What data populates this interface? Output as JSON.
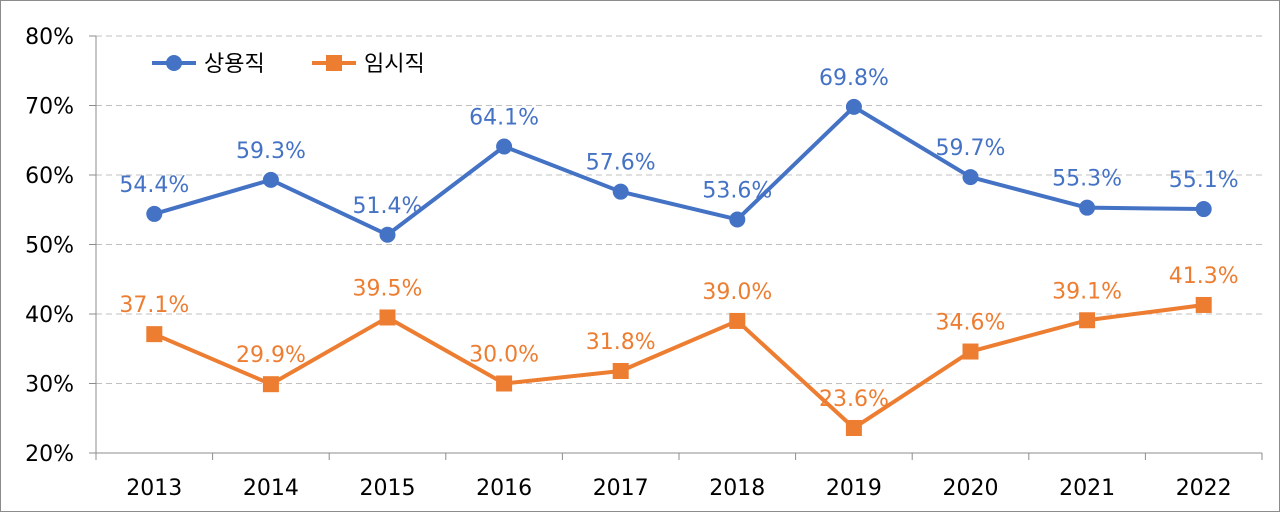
{
  "chart_data": {
    "type": "line",
    "title": "",
    "xlabel": "",
    "ylabel": "",
    "x": [
      "2013",
      "2014",
      "2015",
      "2016",
      "2017",
      "2018",
      "2019",
      "2020",
      "2021",
      "2022"
    ],
    "ylim": [
      20,
      80
    ],
    "yticks": [
      20,
      30,
      40,
      50,
      60,
      70,
      80
    ],
    "ytick_labels": [
      "20%",
      "30%",
      "40%",
      "50%",
      "60%",
      "70%",
      "80%"
    ],
    "grid": "horizontal dashed",
    "legend_position": "top-left",
    "series": [
      {
        "name": "상용직",
        "color": "#4472C4",
        "marker": "circle",
        "values": [
          54.4,
          59.3,
          51.4,
          64.1,
          57.6,
          53.6,
          69.8,
          59.7,
          55.3,
          55.1
        ],
        "labels": [
          "54.4%",
          "59.3%",
          "51.4%",
          "64.1%",
          "57.6%",
          "53.6%",
          "69.8%",
          "59.7%",
          "55.3%",
          "55.1%"
        ]
      },
      {
        "name": "임시직",
        "color": "#ED7D31",
        "marker": "square",
        "values": [
          37.1,
          29.9,
          39.5,
          30.0,
          31.8,
          39.0,
          23.6,
          34.6,
          39.1,
          41.3
        ],
        "labels": [
          "37.1%",
          "29.9%",
          "39.5%",
          "30.0%",
          "31.8%",
          "39.0%",
          "23.6%",
          "34.6%",
          "39.1%",
          "41.3%"
        ]
      }
    ]
  }
}
